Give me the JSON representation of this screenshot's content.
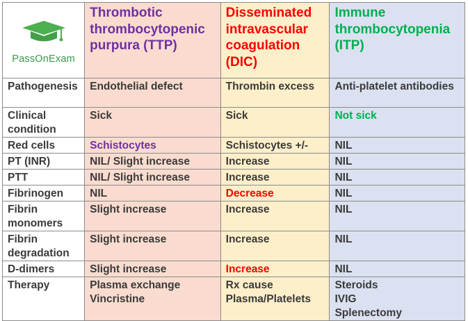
{
  "logo": {
    "text": "PassOnExam",
    "icon": "graduation-cap-icon",
    "color": "#4caf50"
  },
  "columns": {
    "ttp": {
      "title": "Thrombotic thrombocytopenic purpura (TTP)",
      "color": "#7030a0"
    },
    "dic": {
      "title": "Disseminated intravascular coagulation (DIC)",
      "color": "#ff0000"
    },
    "itp": {
      "title": "Immune thrombocytopenia (ITP)",
      "color": "#00b050"
    }
  },
  "rows": [
    {
      "label": "Pathogenesis",
      "ttp": "Endothelial defect",
      "dic": "Thrombin excess",
      "itp": "Anti-platelet antibodies"
    },
    {
      "label": "Clinical condition",
      "ttp": "Sick",
      "dic": "Sick",
      "itp": "Not sick"
    },
    {
      "label": "Red cells",
      "ttp": "Schistocytes",
      "dic": "Schistocytes +/-",
      "itp": "NIL"
    },
    {
      "label": "PT (INR)",
      "ttp": "NIL/ Slight increase",
      "dic": "Increase",
      "itp": "NIL"
    },
    {
      "label": "PTT",
      "ttp": "NIL/ Slight increase",
      "dic": "Increase",
      "itp": "NIL"
    },
    {
      "label": "Fibrinogen",
      "ttp": "NIL",
      "dic": "Decrease",
      "itp": "NIL"
    },
    {
      "label": "Fibrin monomers",
      "ttp": "Slight increase",
      "dic": "Increase",
      "itp": "NIL"
    },
    {
      "label": "Fibrin degradation",
      "ttp": "Slight increase",
      "dic": "Increase",
      "itp": "NIL"
    },
    {
      "label": "D-dimers",
      "ttp": "Slight increase",
      "dic": "Increase",
      "itp": "NIL"
    },
    {
      "label": "Therapy",
      "ttp": [
        "Plasma exchange",
        "Vincristine"
      ],
      "dic": [
        "Rx cause",
        "Plasma/Platelets"
      ],
      "itp": [
        "Steroids",
        "IVIG",
        "Splenectomy"
      ]
    }
  ],
  "colors": {
    "ttp_bg": "#f9dccf",
    "dic_bg": "#fdefc9",
    "itp_bg": "#dbe1f1",
    "highlight_purple": "#7030a0",
    "highlight_red": "#ff0000",
    "highlight_green": "#00b050"
  }
}
